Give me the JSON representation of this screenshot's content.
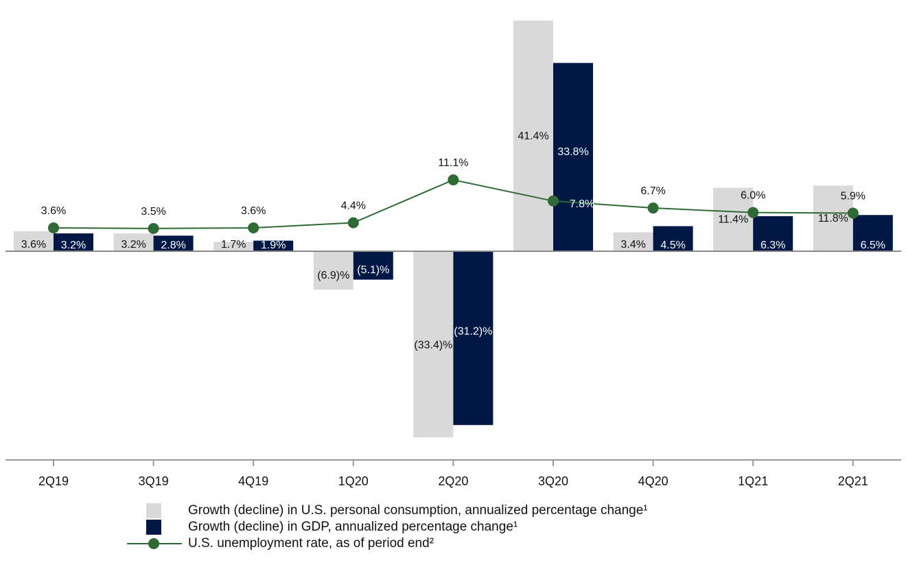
{
  "chart_data": {
    "type": "bar",
    "categories": [
      "2Q19",
      "3Q19",
      "4Q19",
      "1Q20",
      "2Q20",
      "3Q20",
      "4Q20",
      "1Q21",
      "2Q21"
    ],
    "series": [
      {
        "name": "Growth (decline) in U.S. personal consumption, annualized percentage change¹",
        "kind": "bar",
        "color": "#d9d9d9",
        "values": [
          3.6,
          3.2,
          1.7,
          -6.9,
          -33.4,
          41.4,
          3.4,
          11.4,
          11.8
        ],
        "labels": [
          "3.6%",
          "3.2%",
          "1.7%",
          "(6.9)%",
          "(33.4)%",
          "41.4%",
          "3.4%",
          "11.4%",
          "11.8%"
        ]
      },
      {
        "name": "Growth (decline) in GDP, annualized percentage change¹",
        "kind": "bar",
        "color": "#001846",
        "values": [
          3.2,
          2.8,
          1.9,
          -5.1,
          -31.2,
          33.8,
          4.5,
          6.3,
          6.5
        ],
        "labels": [
          "3.2%",
          "2.8%",
          "1.9%",
          "(5.1)%",
          "(31.2)%",
          "33.8%",
          "4.5%",
          "6.3%",
          "6.5%"
        ]
      },
      {
        "name": "U.S. unemployment rate, as of period end²",
        "kind": "line",
        "color": "#2e6b34",
        "values": [
          3.6,
          3.5,
          3.6,
          4.4,
          11.1,
          7.8,
          6.7,
          6.0,
          5.9
        ],
        "labels": [
          "3.6%",
          "3.5%",
          "3.6%",
          "4.4%",
          "11.1%",
          "7.8%",
          "6.7%",
          "6.0%",
          "5.9%"
        ]
      }
    ],
    "ylim": [
      -34,
      41.4
    ],
    "grid": false,
    "legend_position": "bottom",
    "colors": {
      "baseline": "#888888",
      "axis": "#999999",
      "text": "#111111",
      "inner_label": "#ffffff"
    }
  }
}
